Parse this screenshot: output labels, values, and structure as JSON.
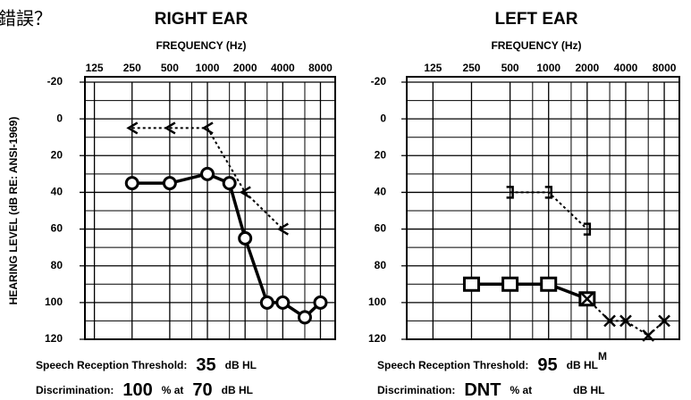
{
  "note": "錯誤？",
  "chart_data": [
    {
      "type": "line",
      "title": "RIGHT EAR",
      "xlabel": "FREQUENCY (Hz)",
      "ylabel": "HEARING LEVEL (dB RE: ANSI-1969)",
      "xscale": "log",
      "xlim": [
        105,
        10500
      ],
      "xticks": [
        125,
        250,
        500,
        1000,
        2000,
        4000,
        8000
      ],
      "xminor": [
        750,
        1500,
        3000,
        6000
      ],
      "ylim": [
        -20,
        120
      ],
      "yinverted": true,
      "yticks": [
        -20,
        0,
        20,
        40,
        60,
        80,
        100,
        120
      ],
      "yminor": [
        -10,
        10,
        30,
        50,
        70,
        90,
        110
      ],
      "grid": true,
      "series": [
        {
          "color": "#000000",
          "marker": "circle",
          "dash": false,
          "x": [
            250,
            500,
            1000,
            1500,
            2000,
            3000,
            4000,
            6000,
            8000
          ],
          "values": [
            35,
            35,
            30,
            35,
            65,
            100,
            100,
            108,
            100
          ]
        },
        {
          "color": "#000000",
          "marker": "lt",
          "dash": true,
          "x": [
            250,
            500,
            1000,
            2000,
            4000
          ],
          "values": [
            5,
            5,
            5,
            40,
            60
          ]
        }
      ],
      "speech": [
        "Speech Reception Threshold:",
        "35",
        "dB HL"
      ],
      "discrimination": [
        "Discrimination:",
        "100",
        "% at",
        "70",
        "dB HL"
      ]
    },
    {
      "type": "line",
      "title": "LEFT EAR",
      "xlabel": "FREQUENCY (Hz)",
      "xscale": "log",
      "xlim": [
        78,
        10500
      ],
      "xticks": [
        125,
        250,
        500,
        1000,
        2000,
        4000,
        8000
      ],
      "xminor": [
        750,
        1500,
        3000,
        6000
      ],
      "ylim": [
        -20,
        120
      ],
      "yinverted": true,
      "yticks": [
        -20,
        0,
        20,
        40,
        60,
        80,
        100,
        120
      ],
      "yminor": [
        -10,
        10,
        30,
        50,
        70,
        90,
        110
      ],
      "grid": true,
      "series": [
        {
          "color": "#000000",
          "marker": "square",
          "dash": false,
          "x": [
            250,
            500,
            1000,
            2000
          ],
          "values": [
            90,
            90,
            90,
            98
          ]
        },
        {
          "color": "#000000",
          "marker": "cross",
          "dash": true,
          "x": [
            2000,
            3000,
            4000,
            6000,
            8000
          ],
          "values": [
            98,
            110,
            110,
            118,
            110
          ]
        },
        {
          "color": "#000000",
          "marker": "bracket",
          "dash": true,
          "x": [
            500,
            1000,
            2000
          ],
          "values": [
            40,
            40,
            60
          ]
        }
      ],
      "speech": [
        "Speech Reception Threshold:",
        "95",
        "dB HL",
        "M"
      ],
      "discrimination": [
        "Discrimination:",
        "DNT",
        "% at",
        "dB HL"
      ]
    }
  ]
}
